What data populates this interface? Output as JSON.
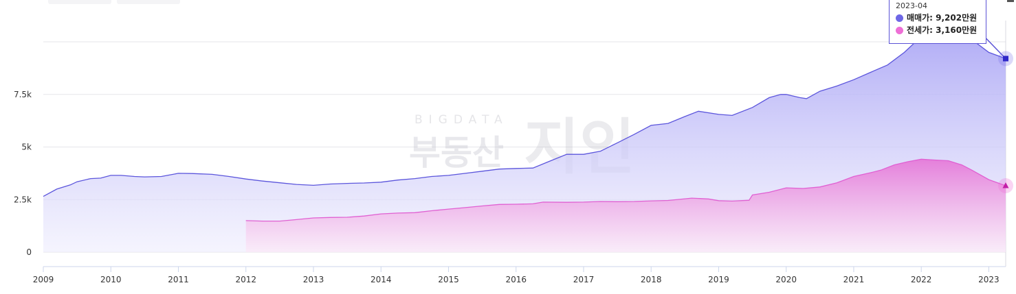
{
  "tabs": [
    "",
    ""
  ],
  "watermark": {
    "top": "BIGDATA",
    "main": "부동산",
    "logo": "지인"
  },
  "tooltip": {
    "date": "2023-04",
    "rows": [
      {
        "label": "매매가",
        "value": "9,202만원",
        "color": "#6e67e6"
      },
      {
        "label": "전세가",
        "value": "3,160만원",
        "color": "#ee6fd6"
      }
    ]
  },
  "chart_data": {
    "type": "area",
    "title": "",
    "xlabel": "",
    "ylabel": "",
    "x_ticks": [
      "2009",
      "2010",
      "2011",
      "2012",
      "2013",
      "2014",
      "2015",
      "2016",
      "2017",
      "2018",
      "2019",
      "2020",
      "2021",
      "2022",
      "2023"
    ],
    "y_ticks": [
      {
        "value": 0,
        "label": "0"
      },
      {
        "value": 2500,
        "label": "2.5k"
      },
      {
        "value": 5000,
        "label": "5k"
      },
      {
        "value": 7500,
        "label": "7.5k"
      },
      {
        "value": 10000,
        "label": ""
      }
    ],
    "ylim": [
      0,
      10000
    ],
    "xlim": [
      2009.0,
      2023.25
    ],
    "grid": true,
    "legend": "none",
    "series": [
      {
        "name": "매매가",
        "color": "#5b55dc",
        "x": [
          2009.0,
          2009.2,
          2009.4,
          2009.5,
          2009.7,
          2009.85,
          2010.0,
          2010.15,
          2010.35,
          2010.5,
          2010.75,
          2011.0,
          2011.2,
          2011.5,
          2011.75,
          2012.0,
          2012.25,
          2012.5,
          2012.75,
          2013.0,
          2013.25,
          2013.5,
          2013.75,
          2014.0,
          2014.25,
          2014.5,
          2014.75,
          2015.0,
          2015.25,
          2015.5,
          2015.75,
          2016.0,
          2016.25,
          2016.5,
          2016.75,
          2017.0,
          2017.25,
          2017.5,
          2017.75,
          2018.0,
          2018.25,
          2018.5,
          2018.7,
          2019.0,
          2019.2,
          2019.5,
          2019.75,
          2019.92,
          2020.0,
          2020.2,
          2020.3,
          2020.5,
          2020.75,
          2021.0,
          2021.25,
          2021.5,
          2021.75,
          2022.0,
          2022.25,
          2022.5,
          2022.75,
          2023.0,
          2023.25
        ],
        "values": [
          2650,
          3000,
          3200,
          3350,
          3500,
          3520,
          3650,
          3650,
          3600,
          3580,
          3600,
          3750,
          3740,
          3700,
          3600,
          3480,
          3380,
          3300,
          3220,
          3180,
          3240,
          3270,
          3290,
          3330,
          3430,
          3500,
          3600,
          3650,
          3750,
          3850,
          3950,
          3980,
          4000,
          4330,
          4650,
          4650,
          4800,
          5200,
          5600,
          6030,
          6120,
          6450,
          6700,
          6550,
          6500,
          6880,
          7350,
          7500,
          7500,
          7350,
          7300,
          7650,
          7900,
          8200,
          8550,
          8900,
          9500,
          10250,
          10350,
          10280,
          10100,
          9500,
          9202
        ]
      },
      {
        "name": "전세가",
        "color": "#e060d2",
        "x": [
          2012.0,
          2012.25,
          2012.5,
          2012.75,
          2013.0,
          2013.25,
          2013.5,
          2013.75,
          2014.0,
          2014.25,
          2014.5,
          2014.75,
          2015.0,
          2015.25,
          2015.5,
          2015.75,
          2016.0,
          2016.25,
          2016.4,
          2016.75,
          2017.0,
          2017.25,
          2017.5,
          2017.75,
          2018.0,
          2018.25,
          2018.6,
          2018.85,
          2019.0,
          2019.2,
          2019.45,
          2019.5,
          2019.75,
          2020.0,
          2020.25,
          2020.5,
          2020.75,
          2021.0,
          2021.25,
          2021.4,
          2021.6,
          2021.8,
          2022.0,
          2022.2,
          2022.4,
          2022.6,
          2022.75,
          2023.0,
          2023.25
        ],
        "values": [
          1500,
          1480,
          1480,
          1550,
          1630,
          1650,
          1660,
          1720,
          1820,
          1860,
          1880,
          1970,
          2050,
          2120,
          2200,
          2270,
          2280,
          2300,
          2380,
          2370,
          2380,
          2410,
          2400,
          2410,
          2440,
          2460,
          2570,
          2530,
          2450,
          2430,
          2470,
          2720,
          2850,
          3060,
          3030,
          3100,
          3300,
          3600,
          3780,
          3900,
          4150,
          4300,
          4420,
          4380,
          4350,
          4150,
          3900,
          3450,
          3160
        ]
      }
    ]
  }
}
